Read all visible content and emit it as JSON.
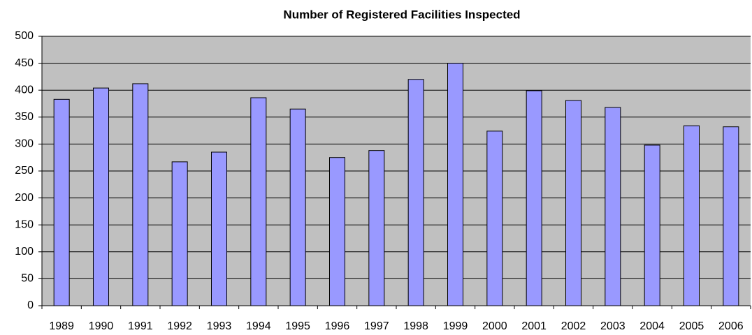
{
  "chart_data": {
    "type": "bar",
    "title": "Number of Registered Facilities Inspected",
    "categories": [
      "1989",
      "1990",
      "1991",
      "1992",
      "1993",
      "1994",
      "1995",
      "1996",
      "1997",
      "1998",
      "1999",
      "2000",
      "2001",
      "2002",
      "2003",
      "2004",
      "2005",
      "2006"
    ],
    "values": [
      383,
      404,
      412,
      267,
      285,
      386,
      365,
      275,
      288,
      420,
      450,
      324,
      399,
      381,
      368,
      298,
      334,
      332
    ],
    "color": "#9999ff",
    "ylim": [
      0,
      500
    ],
    "yticks": [
      0,
      50,
      100,
      150,
      200,
      250,
      300,
      350,
      400,
      450,
      500
    ],
    "grid": true
  }
}
